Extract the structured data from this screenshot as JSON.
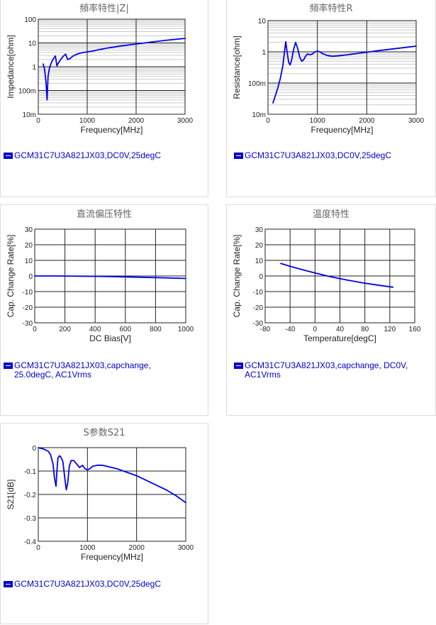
{
  "colors": {
    "series": "#0000ee",
    "grid_major": "#222222",
    "grid_minor": "#cccccc",
    "legend": "#0000cc",
    "panel_border": "#dcdcdc"
  },
  "chart_data": [
    {
      "id": "impedance",
      "type": "line",
      "title": "頻率特性|Z|",
      "xlabel": "Frequency[MHz]",
      "ylabel": "Impedance[ohm]",
      "xscale": "linear",
      "yscale": "log",
      "xlim": [
        0,
        3000
      ],
      "ylim": [
        0.01,
        100
      ],
      "xticks": [
        0,
        1000,
        2000,
        3000
      ],
      "xtick_labels": [
        "0",
        "1000",
        "2000",
        "3000"
      ],
      "yticks": [
        0.01,
        0.1,
        1,
        10,
        100
      ],
      "ytick_labels": [
        "10m",
        "100m",
        "1",
        "10",
        "100"
      ],
      "grid": true,
      "legend": [
        "GCM31C7U3A821JX03,DC0V,25degC"
      ],
      "series": [
        {
          "x": [
            100,
            130,
            160,
            180,
            200,
            230,
            270,
            310,
            350,
            380,
            410,
            450,
            500,
            560,
            600,
            650,
            700,
            750,
            800,
            850,
            900,
            1000,
            1100,
            1200,
            1300,
            1400,
            1500,
            1700,
            2000,
            2300,
            2600,
            3000
          ],
          "y": [
            1.3,
            0.75,
            0.2,
            0.04,
            0.4,
            0.9,
            1.5,
            2.2,
            2.8,
            1.1,
            1.4,
            1.9,
            2.6,
            3.4,
            2.0,
            2.2,
            2.7,
            3.1,
            3.4,
            3.7,
            3.9,
            4.2,
            4.5,
            5.0,
            5.5,
            6.0,
            6.5,
            7.5,
            9.0,
            10.8,
            12.8,
            15.5
          ]
        }
      ]
    },
    {
      "id": "resistance",
      "type": "line",
      "title": "頻率特性R",
      "xlabel": "Frequency[MHz]",
      "ylabel": "Resistance[ohm]",
      "xscale": "linear",
      "yscale": "log",
      "xlim": [
        0,
        3000
      ],
      "ylim": [
        0.01,
        10
      ],
      "xticks": [
        0,
        1000,
        2000,
        3000
      ],
      "xtick_labels": [
        "0",
        "1000",
        "2000",
        "3000"
      ],
      "yticks": [
        0.01,
        0.1,
        1,
        10
      ],
      "ytick_labels": [
        "10m",
        "100m",
        "1",
        "10"
      ],
      "grid": true,
      "legend": [
        "GCM31C7U3A821JX03,DC0V,25degC"
      ],
      "series": [
        {
          "x": [
            100,
            150,
            200,
            250,
            300,
            330,
            360,
            390,
            420,
            450,
            480,
            520,
            560,
            600,
            640,
            680,
            720,
            760,
            800,
            850,
            900,
            950,
            1000,
            1050,
            1100,
            1200,
            1300,
            1400,
            1600,
            1800,
            2000,
            2200,
            2500,
            2800,
            3000
          ],
          "y": [
            0.023,
            0.04,
            0.07,
            0.14,
            0.35,
            0.9,
            2.1,
            0.9,
            0.45,
            0.38,
            0.55,
            1.2,
            2.0,
            1.3,
            0.7,
            0.5,
            0.55,
            0.72,
            0.85,
            0.8,
            0.85,
            1.0,
            1.05,
            1.0,
            0.88,
            0.76,
            0.72,
            0.74,
            0.8,
            0.88,
            0.97,
            1.07,
            1.22,
            1.39,
            1.52
          ]
        }
      ]
    },
    {
      "id": "dc-bias",
      "type": "line",
      "title": "直流偏压特性",
      "xlabel": "DC Bias[V]",
      "ylabel": "Cap. Change Rate[%]",
      "xscale": "linear",
      "yscale": "linear",
      "xlim": [
        0,
        1000
      ],
      "ylim": [
        -30,
        30
      ],
      "xticks": [
        0,
        200,
        400,
        600,
        800,
        1000
      ],
      "xtick_labels": [
        "0",
        "200",
        "400",
        "600",
        "800",
        "1000"
      ],
      "yticks": [
        -30,
        -20,
        -10,
        0,
        10,
        20,
        30
      ],
      "ytick_labels": [
        "-30",
        "-20",
        "-10",
        "0",
        "10",
        "20",
        "30"
      ],
      "grid": true,
      "legend": [
        "GCM31C7U3A821JX03,capchange,",
        "25.0degC, AC1Vrms"
      ],
      "series": [
        {
          "x": [
            0,
            100,
            200,
            300,
            400,
            500,
            600,
            700,
            800,
            900,
            1000
          ],
          "y": [
            0,
            0,
            -0.05,
            -0.15,
            -0.25,
            -0.4,
            -0.6,
            -0.8,
            -1.05,
            -1.3,
            -1.6
          ]
        }
      ]
    },
    {
      "id": "temperature",
      "type": "line",
      "title": "温度特性",
      "xlabel": "Temperature[degC]",
      "ylabel": "Cap. Change Rate[%]",
      "xscale": "linear",
      "yscale": "linear",
      "xlim": [
        -80,
        160
      ],
      "ylim": [
        -30,
        30
      ],
      "xticks": [
        -80,
        -40,
        0,
        40,
        80,
        120,
        160
      ],
      "xtick_labels": [
        "-80",
        "-40",
        "0",
        "40",
        "80",
        "120",
        "160"
      ],
      "yticks": [
        -30,
        -20,
        -10,
        0,
        10,
        20,
        30
      ],
      "ytick_labels": [
        "-30",
        "-20",
        "-10",
        "0",
        "10",
        "20",
        "30"
      ],
      "grid": true,
      "legend": [
        "GCM31C7U3A821JX03,capchange, DC0V,",
        "AC1Vrms"
      ],
      "series": [
        {
          "x": [
            -55,
            -40,
            -20,
            0,
            25,
            50,
            75,
            100,
            125
          ],
          "y": [
            8,
            6.2,
            4,
            1.9,
            -0.5,
            -2.5,
            -4.3,
            -5.8,
            -7.2
          ]
        }
      ]
    },
    {
      "id": "s21",
      "type": "line",
      "title": "S参数S21",
      "xlabel": "Frequency[MHz]",
      "ylabel": "S21[dB]",
      "xscale": "linear",
      "yscale": "linear",
      "xlim": [
        0,
        3000
      ],
      "ylim": [
        -0.4,
        0
      ],
      "xticks": [
        0,
        1000,
        2000,
        3000
      ],
      "xtick_labels": [
        "0",
        "1000",
        "2000",
        "3000"
      ],
      "yticks": [
        -0.4,
        -0.3,
        -0.2,
        -0.1,
        0
      ],
      "ytick_labels": [
        "-0.4",
        "-0.3",
        "-0.2",
        "-0.1",
        "0"
      ],
      "grid": true,
      "legend": [
        "GCM31C7U3A821JX03,DC0V,25degC"
      ],
      "series": [
        {
          "x": [
            0,
            50,
            100,
            150,
            200,
            250,
            300,
            330,
            360,
            380,
            400,
            430,
            460,
            500,
            540,
            570,
            600,
            630,
            670,
            720,
            780,
            840,
            900,
            950,
            1000,
            1050,
            1100,
            1200,
            1300,
            1400,
            1600,
            1800,
            2000,
            2200,
            2400,
            2600,
            2800,
            3000
          ],
          "y": [
            0,
            -0.003,
            -0.005,
            -0.01,
            -0.015,
            -0.03,
            -0.07,
            -0.13,
            -0.165,
            -0.1,
            -0.045,
            -0.035,
            -0.04,
            -0.06,
            -0.13,
            -0.18,
            -0.15,
            -0.08,
            -0.055,
            -0.055,
            -0.07,
            -0.085,
            -0.075,
            -0.09,
            -0.095,
            -0.09,
            -0.08,
            -0.075,
            -0.075,
            -0.08,
            -0.09,
            -0.105,
            -0.12,
            -0.14,
            -0.16,
            -0.18,
            -0.205,
            -0.235
          ]
        }
      ]
    }
  ]
}
